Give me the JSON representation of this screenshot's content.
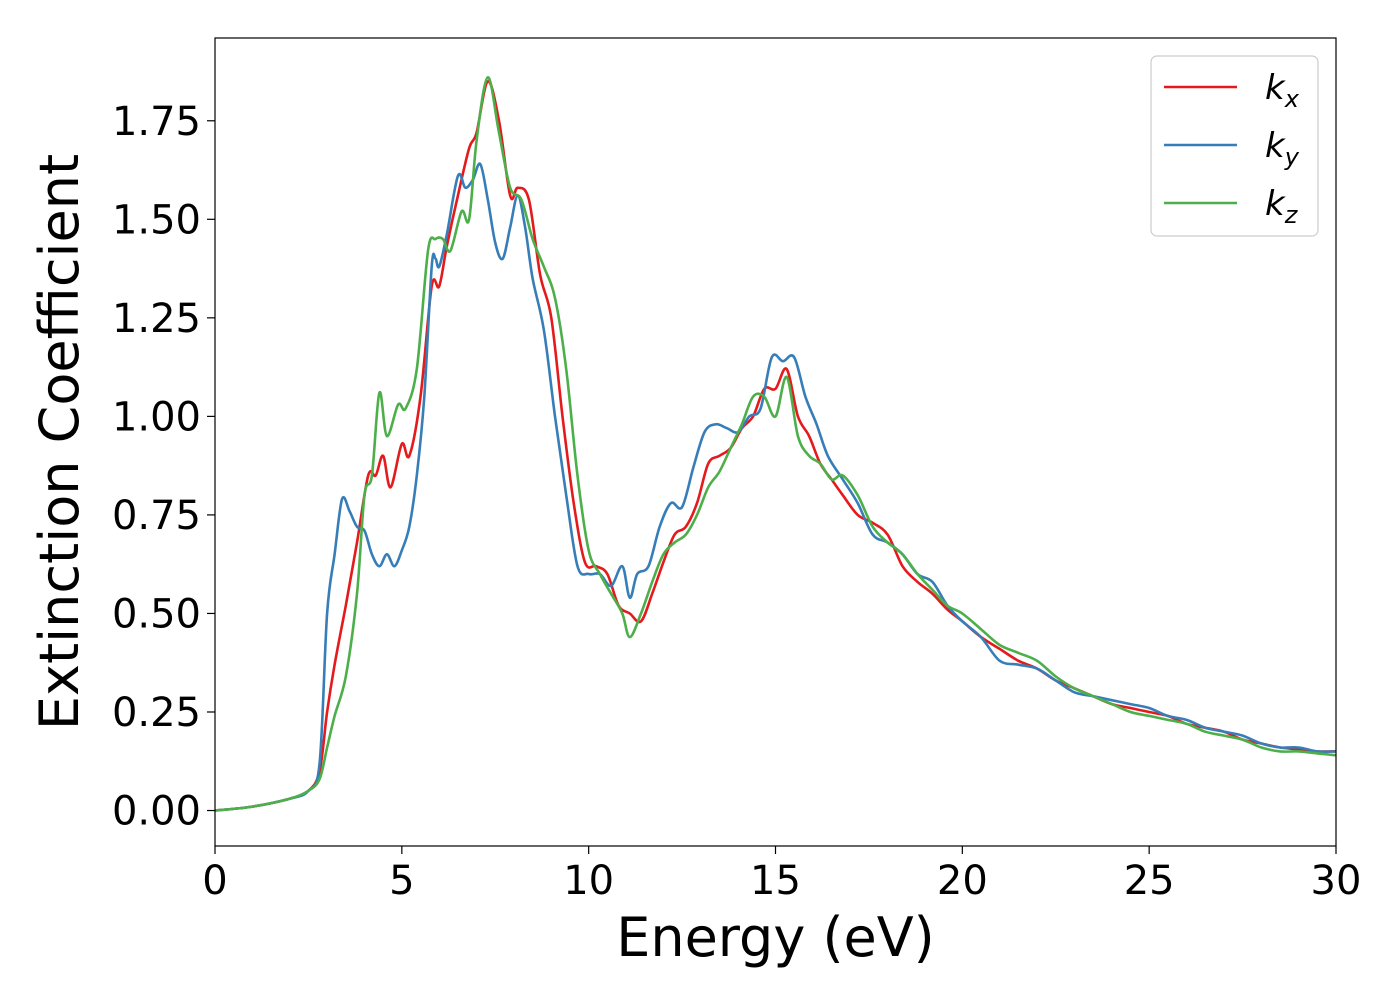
{
  "chart_data": {
    "type": "line",
    "xlabel": "Energy (eV)",
    "ylabel": "Extinction Coefficient",
    "xlim": [
      0,
      30
    ],
    "ylim": [
      -0.09,
      1.96
    ],
    "xticks": [
      0,
      5,
      10,
      15,
      20,
      25,
      30
    ],
    "yticks": [
      0.0,
      0.25,
      0.5,
      0.75,
      1.0,
      1.25,
      1.5,
      1.75
    ],
    "xtick_labels": [
      "0",
      "5",
      "10",
      "15",
      "20",
      "25",
      "30"
    ],
    "ytick_labels": [
      "0.00",
      "0.25",
      "0.50",
      "0.75",
      "1.00",
      "1.25",
      "1.50",
      "1.75"
    ],
    "grid": false,
    "legend_position": "top-right",
    "series": [
      {
        "name": "k",
        "subscript": "x",
        "color": "#e41a1c",
        "x": [
          0,
          1,
          2,
          2.5,
          2.8,
          3.0,
          3.2,
          3.5,
          3.8,
          4.1,
          4.3,
          4.5,
          4.7,
          5.0,
          5.2,
          5.5,
          5.8,
          6.0,
          6.2,
          6.5,
          6.8,
          7.0,
          7.3,
          7.6,
          7.9,
          8.1,
          8.4,
          8.7,
          9.0,
          9.3,
          9.6,
          9.9,
          10.2,
          10.5,
          10.8,
          11.1,
          11.4,
          11.7,
          12.0,
          12.3,
          12.6,
          12.9,
          13.2,
          13.5,
          13.8,
          14.1,
          14.4,
          14.7,
          15.0,
          15.3,
          15.6,
          15.9,
          16.2,
          16.5,
          16.8,
          17.2,
          17.6,
          18.0,
          18.4,
          18.8,
          19.2,
          19.6,
          20.0,
          20.5,
          21.0,
          21.5,
          22.0,
          22.5,
          23.0,
          23.5,
          24.0,
          24.5,
          25.0,
          25.5,
          26.0,
          26.5,
          27.0,
          27.5,
          28.0,
          28.5,
          29.0,
          29.5,
          30.0
        ],
        "y": [
          0.0,
          0.01,
          0.03,
          0.05,
          0.1,
          0.25,
          0.37,
          0.52,
          0.68,
          0.85,
          0.85,
          0.9,
          0.82,
          0.93,
          0.9,
          1.05,
          1.33,
          1.33,
          1.43,
          1.56,
          1.68,
          1.72,
          1.85,
          1.75,
          1.56,
          1.58,
          1.55,
          1.36,
          1.25,
          1.0,
          0.78,
          0.63,
          0.62,
          0.6,
          0.52,
          0.5,
          0.48,
          0.55,
          0.63,
          0.7,
          0.72,
          0.78,
          0.88,
          0.9,
          0.92,
          0.97,
          1.0,
          1.07,
          1.07,
          1.12,
          1.0,
          0.95,
          0.88,
          0.84,
          0.8,
          0.75,
          0.73,
          0.7,
          0.62,
          0.58,
          0.55,
          0.51,
          0.48,
          0.44,
          0.41,
          0.38,
          0.36,
          0.33,
          0.31,
          0.29,
          0.27,
          0.26,
          0.25,
          0.24,
          0.22,
          0.21,
          0.2,
          0.18,
          0.17,
          0.16,
          0.155,
          0.15,
          0.15
        ]
      },
      {
        "name": "k",
        "subscript": "y",
        "color": "#377eb8",
        "x": [
          0,
          1,
          2,
          2.5,
          2.8,
          3.0,
          3.2,
          3.4,
          3.6,
          3.8,
          4.0,
          4.2,
          4.4,
          4.6,
          4.8,
          5.0,
          5.2,
          5.4,
          5.6,
          5.8,
          5.9,
          6.0,
          6.2,
          6.5,
          6.7,
          6.9,
          7.1,
          7.3,
          7.5,
          7.7,
          7.9,
          8.1,
          8.3,
          8.5,
          8.8,
          9.1,
          9.4,
          9.7,
          10.0,
          10.3,
          10.6,
          10.9,
          11.1,
          11.3,
          11.6,
          11.9,
          12.2,
          12.5,
          12.8,
          13.1,
          13.4,
          13.7,
          14.0,
          14.3,
          14.6,
          14.9,
          15.2,
          15.5,
          15.8,
          16.1,
          16.4,
          16.8,
          17.2,
          17.6,
          18.0,
          18.4,
          18.8,
          19.2,
          19.6,
          20.0,
          20.5,
          21.0,
          21.5,
          22.0,
          22.5,
          23.0,
          23.5,
          24.0,
          24.5,
          25.0,
          25.5,
          26.0,
          26.5,
          27.0,
          27.5,
          28.0,
          28.5,
          29.0,
          29.5,
          30.0
        ],
        "y": [
          0.0,
          0.01,
          0.03,
          0.05,
          0.12,
          0.5,
          0.65,
          0.79,
          0.76,
          0.72,
          0.71,
          0.65,
          0.62,
          0.65,
          0.62,
          0.66,
          0.72,
          0.85,
          1.05,
          1.38,
          1.4,
          1.38,
          1.46,
          1.61,
          1.58,
          1.6,
          1.64,
          1.55,
          1.44,
          1.4,
          1.48,
          1.56,
          1.48,
          1.35,
          1.22,
          1.0,
          0.8,
          0.62,
          0.6,
          0.6,
          0.57,
          0.62,
          0.54,
          0.6,
          0.62,
          0.72,
          0.78,
          0.77,
          0.87,
          0.96,
          0.98,
          0.97,
          0.96,
          1.0,
          1.02,
          1.15,
          1.14,
          1.15,
          1.05,
          0.98,
          0.9,
          0.84,
          0.78,
          0.7,
          0.68,
          0.65,
          0.6,
          0.58,
          0.52,
          0.48,
          0.44,
          0.38,
          0.37,
          0.36,
          0.33,
          0.3,
          0.29,
          0.28,
          0.27,
          0.26,
          0.24,
          0.23,
          0.21,
          0.2,
          0.19,
          0.17,
          0.16,
          0.16,
          0.15,
          0.15
        ]
      },
      {
        "name": "k",
        "subscript": "z",
        "color": "#4daf4a",
        "x": [
          0,
          1,
          2,
          2.5,
          2.8,
          3.0,
          3.2,
          3.5,
          3.8,
          4.0,
          4.2,
          4.4,
          4.6,
          4.9,
          5.1,
          5.4,
          5.7,
          5.9,
          6.1,
          6.3,
          6.6,
          6.8,
          7.0,
          7.3,
          7.6,
          7.9,
          8.2,
          8.5,
          8.8,
          9.1,
          9.4,
          9.7,
          10.0,
          10.3,
          10.6,
          10.9,
          11.1,
          11.4,
          11.7,
          12.0,
          12.3,
          12.6,
          12.9,
          13.2,
          13.5,
          13.8,
          14.1,
          14.4,
          14.7,
          15.0,
          15.3,
          15.6,
          15.9,
          16.2,
          16.5,
          16.8,
          17.2,
          17.6,
          18.0,
          18.4,
          18.8,
          19.2,
          19.6,
          20.0,
          20.5,
          21.0,
          21.5,
          22.0,
          22.5,
          23.0,
          23.5,
          24.0,
          24.5,
          25.0,
          25.5,
          26.0,
          26.5,
          27.0,
          27.5,
          28.0,
          28.5,
          29.0,
          29.5,
          30.0
        ],
        "y": [
          0.0,
          0.01,
          0.03,
          0.05,
          0.08,
          0.16,
          0.24,
          0.34,
          0.55,
          0.8,
          0.85,
          1.06,
          0.95,
          1.03,
          1.02,
          1.12,
          1.42,
          1.45,
          1.45,
          1.42,
          1.52,
          1.5,
          1.7,
          1.86,
          1.72,
          1.58,
          1.55,
          1.45,
          1.38,
          1.3,
          1.12,
          0.85,
          0.66,
          0.6,
          0.55,
          0.5,
          0.44,
          0.5,
          0.58,
          0.65,
          0.68,
          0.7,
          0.75,
          0.82,
          0.86,
          0.92,
          0.98,
          1.05,
          1.05,
          1.0,
          1.1,
          0.95,
          0.9,
          0.88,
          0.84,
          0.85,
          0.8,
          0.72,
          0.68,
          0.65,
          0.6,
          0.56,
          0.52,
          0.5,
          0.46,
          0.42,
          0.4,
          0.38,
          0.34,
          0.31,
          0.29,
          0.27,
          0.25,
          0.24,
          0.23,
          0.22,
          0.2,
          0.19,
          0.18,
          0.16,
          0.15,
          0.15,
          0.145,
          0.14
        ]
      }
    ]
  }
}
